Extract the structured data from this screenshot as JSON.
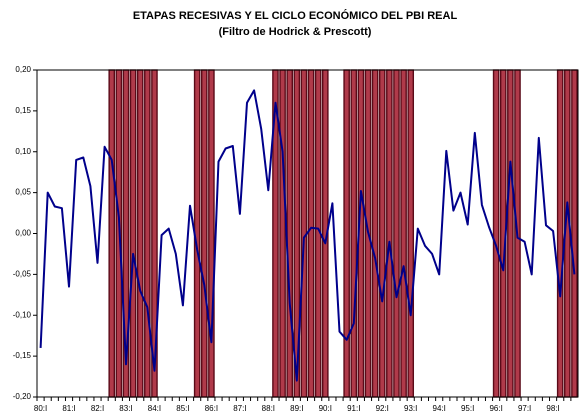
{
  "chart_data": {
    "type": "line",
    "title": "ETAPAS RECESIVAS Y EL CICLO ECONÓMICO DEL PBI REAL",
    "subtitle": "(Filtro de Hodrick & Prescott)",
    "categories": [
      "80:I",
      null,
      null,
      null,
      "81:I",
      null,
      null,
      null,
      "82:I",
      null,
      null,
      null,
      "83:I",
      null,
      null,
      null,
      "84:I",
      null,
      null,
      null,
      "85:I",
      null,
      null,
      null,
      "86:I",
      null,
      null,
      null,
      "87:I",
      null,
      null,
      null,
      "88:I",
      null,
      null,
      null,
      "89:I",
      null,
      null,
      null,
      "90:I",
      null,
      null,
      null,
      "91:I",
      null,
      null,
      null,
      "92:I",
      null,
      null,
      null,
      "93:I",
      null,
      null,
      null,
      "94:I",
      null,
      null,
      null,
      "95:I",
      null,
      null,
      null,
      "96:I",
      null,
      null,
      null,
      "97:I",
      null,
      null,
      null,
      "98:I",
      null,
      null,
      null
    ],
    "series": [
      {
        "color": "#00008b",
        "values": [
          -0.14,
          0.05,
          0.033,
          0.031,
          -0.065,
          0.09,
          0.093,
          0.058,
          -0.036,
          0.106,
          0.09,
          0.02,
          -0.16,
          -0.025,
          -0.07,
          -0.09,
          -0.168,
          -0.002,
          0.006,
          -0.025,
          -0.088,
          0.034,
          -0.02,
          -0.063,
          -0.133,
          0.088,
          0.104,
          0.107,
          0.024,
          0.16,
          0.175,
          0.128,
          0.053,
          0.16,
          0.1,
          -0.085,
          -0.18,
          -0.005,
          0.007,
          0.006,
          -0.012,
          0.037,
          -0.12,
          -0.13,
          -0.11,
          0.052,
          0.002,
          -0.03,
          -0.083,
          -0.01,
          -0.078,
          -0.04,
          -0.1,
          0.006,
          -0.015,
          -0.025,
          -0.05,
          0.101,
          0.028,
          0.05,
          0.011,
          0.123,
          0.035,
          0.008,
          -0.015,
          -0.045,
          0.088,
          -0.005,
          -0.01,
          -0.05,
          0.117,
          0.01,
          0.003,
          -0.077,
          0.038,
          -0.05
        ]
      }
    ],
    "recession_bars": {
      "color": "#b03a4a",
      "edge_color": "#5a0a18",
      "values": [
        null,
        null,
        null,
        null,
        null,
        null,
        null,
        null,
        null,
        null,
        0.2,
        0.2,
        0.2,
        0.2,
        0.2,
        0.2,
        0.2,
        null,
        null,
        null,
        null,
        null,
        0.2,
        0.2,
        0.2,
        null,
        null,
        null,
        null,
        null,
        null,
        null,
        null,
        0.2,
        0.2,
        0.2,
        0.2,
        0.2,
        0.2,
        0.2,
        0.2,
        null,
        null,
        0.2,
        0.2,
        0.2,
        0.2,
        0.2,
        0.2,
        0.2,
        0.2,
        0.2,
        0.2,
        null,
        null,
        null,
        null,
        null,
        null,
        null,
        null,
        null,
        null,
        null,
        0.2,
        0.2,
        0.2,
        0.2,
        null,
        null,
        null,
        null,
        null,
        0.2,
        0.2,
        0.2
      ]
    },
    "ylim": [
      -0.2,
      0.2
    ],
    "yticks": [
      {
        "value": -0.2,
        "label": "-0,20"
      },
      {
        "value": -0.15,
        "label": "-0,15"
      },
      {
        "value": -0.1,
        "label": "-0,10"
      },
      {
        "value": -0.05,
        "label": "-0,05"
      },
      {
        "value": 0,
        "label": "0,00"
      },
      {
        "value": 0.05,
        "label": "0,05"
      },
      {
        "value": 0.1,
        "label": "0,10"
      },
      {
        "value": 0.15,
        "label": "0,15"
      },
      {
        "value": 0.2,
        "label": "0,20"
      }
    ],
    "grid": false
  }
}
